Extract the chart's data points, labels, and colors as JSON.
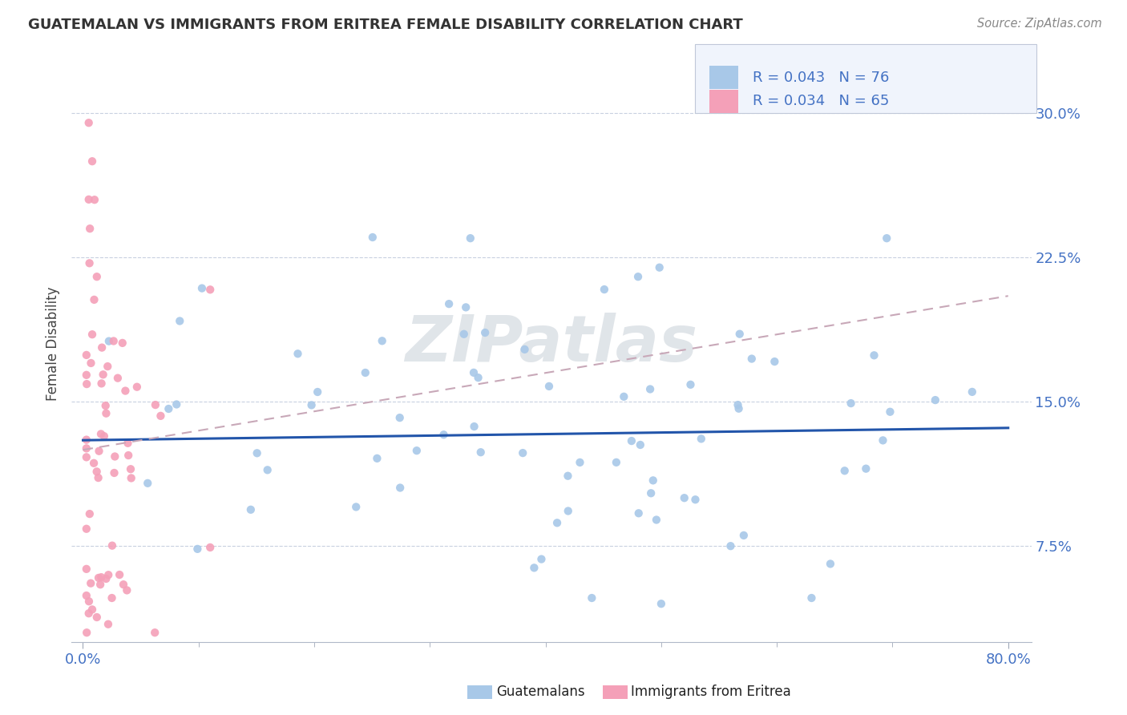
{
  "title": "GUATEMALAN VS IMMIGRANTS FROM ERITREA FEMALE DISABILITY CORRELATION CHART",
  "source": "Source: ZipAtlas.com",
  "ylabel": "Female Disability",
  "ytick_vals": [
    0.075,
    0.15,
    0.225,
    0.3
  ],
  "ytick_labels": [
    "7.5%",
    "15.0%",
    "22.5%",
    "30.0%"
  ],
  "xlim": [
    -0.01,
    0.82
  ],
  "ylim": [
    0.025,
    0.335
  ],
  "r_guatemalan": 0.043,
  "n_guatemalan": 76,
  "r_eritrea": 0.034,
  "n_eritrea": 65,
  "color_guatemalan": "#a8c8e8",
  "color_eritrea": "#f4a0b8",
  "line_color_guatemalan": "#2255aa",
  "line_color_eritrea": "#c8a8b8",
  "background_color": "#ffffff",
  "grid_color": "#c8d0e0",
  "watermark": "ZIPatlas"
}
